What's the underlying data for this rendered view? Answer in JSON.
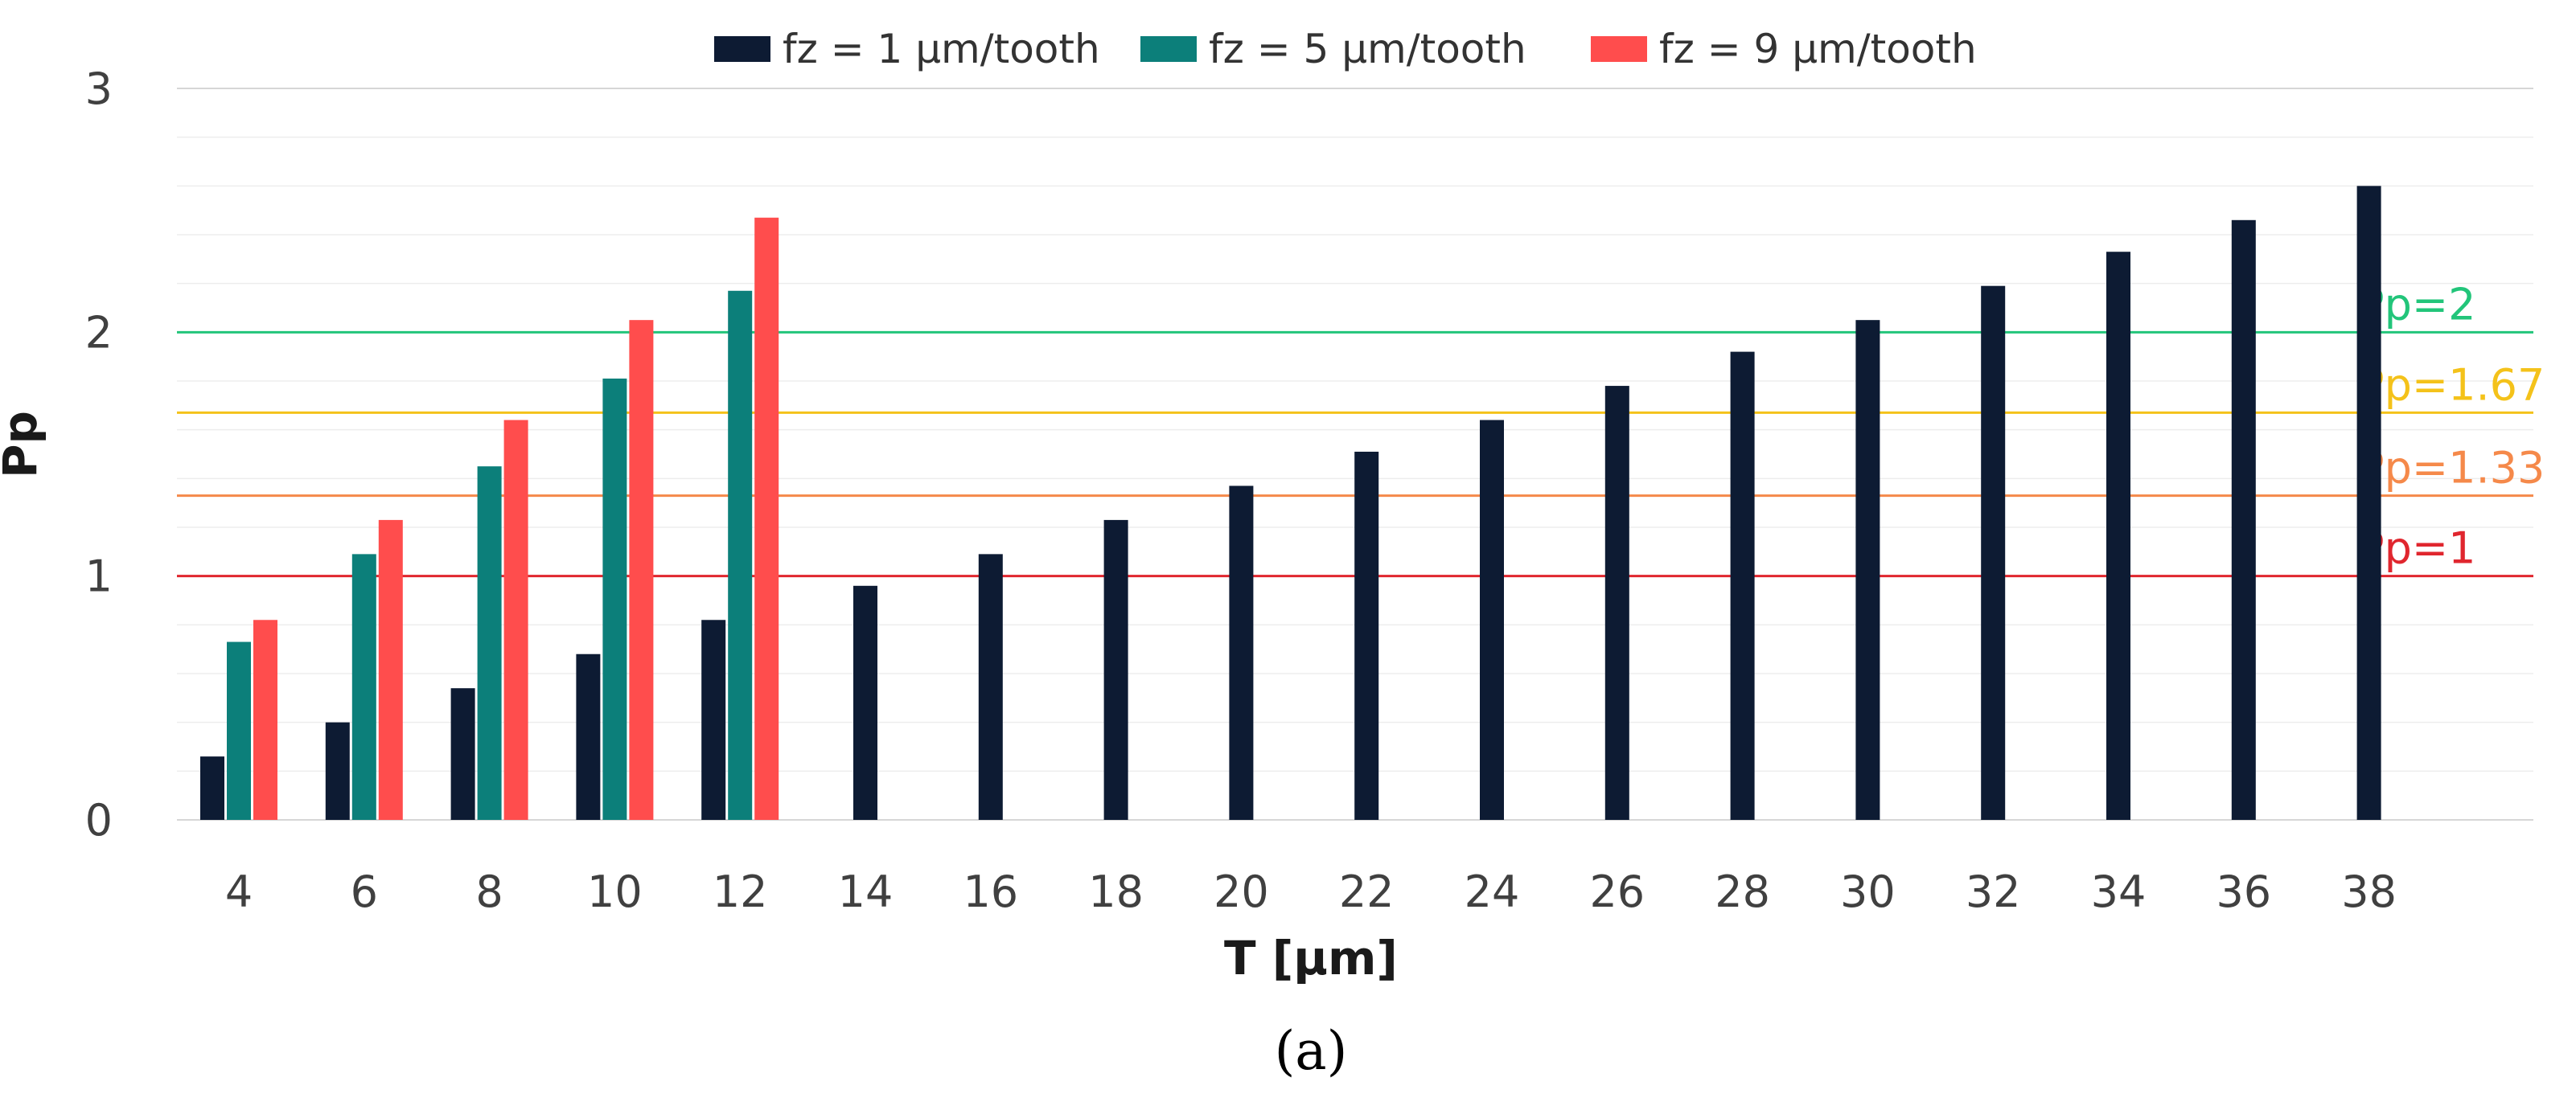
{
  "chart_data": {
    "type": "bar",
    "xlabel": "T [μm]",
    "ylabel": "Pp",
    "ylim": [
      0,
      3
    ],
    "yticks": [
      "0",
      "1",
      "2",
      "3"
    ],
    "grid": true,
    "legend_position": "top",
    "categories": [
      "4",
      "6",
      "8",
      "10",
      "12",
      "14",
      "16",
      "18",
      "20",
      "22",
      "24",
      "26",
      "28",
      "30",
      "32",
      "34",
      "36",
      "38"
    ],
    "series": [
      {
        "name": "fz = 1 μm/tooth",
        "color": "#0d1b33",
        "values": [
          0.26,
          0.4,
          0.54,
          0.68,
          0.82,
          0.96,
          1.09,
          1.23,
          1.37,
          1.51,
          1.64,
          1.78,
          1.92,
          2.05,
          2.19,
          2.33,
          2.46,
          2.6
        ]
      },
      {
        "name": "fz = 5 μm/tooth",
        "color": "#0c7f7a",
        "values": [
          0.73,
          1.09,
          1.45,
          1.81,
          2.17,
          null,
          null,
          null,
          null,
          null,
          null,
          null,
          null,
          null,
          null,
          null,
          null,
          null
        ]
      },
      {
        "name": "fz = 9 μm/tooth",
        "color": "#ff4d4d",
        "values": [
          0.82,
          1.23,
          1.64,
          2.05,
          2.47,
          null,
          null,
          null,
          null,
          null,
          null,
          null,
          null,
          null,
          null,
          null,
          null,
          null
        ]
      }
    ],
    "reference_lines": [
      {
        "label": "Pp=2",
        "value": 2.0,
        "color": "#22c57a"
      },
      {
        "label": "Pp=1.67",
        "value": 1.67,
        "color": "#f4c21a"
      },
      {
        "label": "Pp=1.33",
        "value": 1.33,
        "color": "#f5894a"
      },
      {
        "label": "Pp=1",
        "value": 1.0,
        "color": "#e0262e"
      }
    ]
  },
  "caption": "(a)"
}
